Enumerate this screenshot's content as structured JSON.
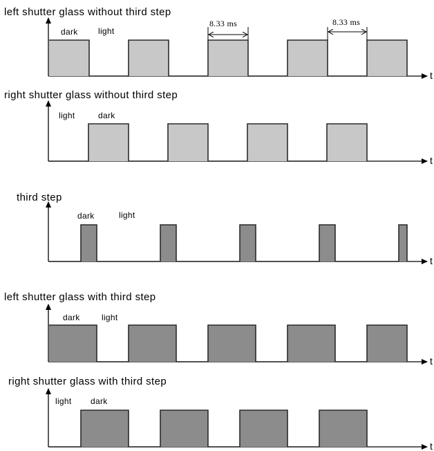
{
  "figure": {
    "time_axis_label": "t",
    "colors": {
      "light_gray": "#c8c8c8",
      "dark_gray": "#8c8c8c",
      "line": "#2a2a2a",
      "background": "#ffffff"
    }
  },
  "panels": [
    {
      "title": "left shutter glass without third step",
      "labels": {
        "dark": "dark",
        "light": "light"
      },
      "dimensions": [
        "8.33 ms",
        "8.33 ms"
      ],
      "pulse_count": 5,
      "fill": "light_gray"
    },
    {
      "title": "right shutter glass without third step",
      "labels": {
        "light": "light",
        "dark": "dark"
      },
      "pulse_count": 4,
      "fill": "light_gray"
    },
    {
      "title": "third step",
      "labels": {
        "dark": "dark",
        "light": "light"
      },
      "pulse_count": 5,
      "fill": "dark_gray"
    },
    {
      "title": "left shutter glass with third step",
      "labels": {
        "dark": "dark",
        "light": "light"
      },
      "pulse_count": 5,
      "fill": "dark_gray"
    },
    {
      "title": "right shutter glass with third step",
      "labels": {
        "light": "light",
        "dark": "dark"
      },
      "pulse_count": 4,
      "fill": "dark_gray"
    }
  ]
}
